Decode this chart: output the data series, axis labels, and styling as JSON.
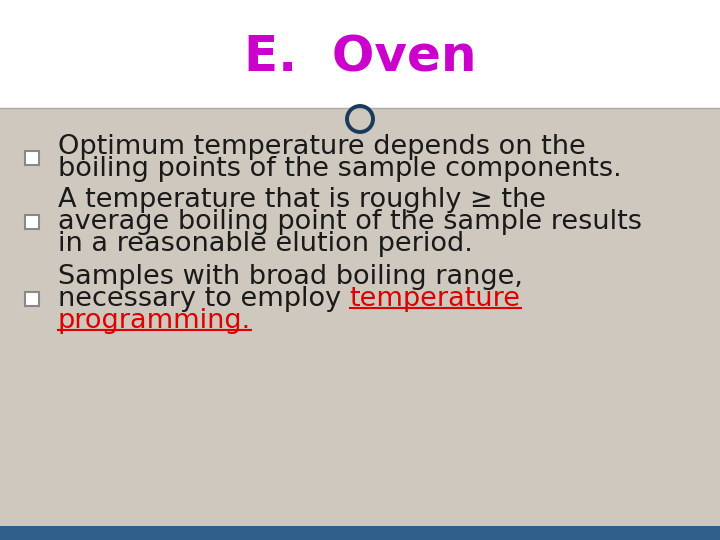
{
  "title": "E.  Oven",
  "title_color": "#cc00cc",
  "title_fontsize": 36,
  "bg_color_top": "#ffffff",
  "bg_color_bottom": "#cec8be",
  "divider_color": "#aaaaaa",
  "circle_edgecolor": "#1a3a5c",
  "bottom_bar_color": "#2e5f8a",
  "bullet_border_color": "#888888",
  "text_color": "#1a1a1a",
  "link_color": "#dd0000",
  "text_fontsize": 19.5,
  "figsize": [
    7.2,
    5.4
  ],
  "dpi": 100,
  "bullet1_line1": "Optimum temperature depends on the",
  "bullet1_line2": "boiling points of the sample components.",
  "bullet2_line1": "A temperature that is roughly ≥ the",
  "bullet2_line2": "average boiling point of the sample results",
  "bullet2_line3": "in a reasonable elution period.",
  "bullet3_line1": "Samples with broad boiling range,",
  "bullet3_line2_normal": "necessary to employ ",
  "bullet3_line2_link": "temperature",
  "bullet3_line3_link": "programming."
}
